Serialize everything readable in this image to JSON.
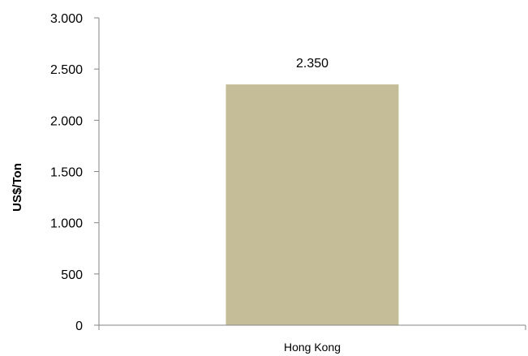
{
  "chart_data": {
    "type": "bar",
    "categories": [
      "Hong Kong"
    ],
    "values": [
      2350
    ],
    "data_labels": [
      "2.350"
    ],
    "title": "",
    "xlabel": "",
    "ylabel": "US$/Ton",
    "ylim": [
      0,
      3000
    ],
    "yticks": [
      0,
      500,
      1000,
      1500,
      2000,
      2500,
      3000
    ],
    "ytick_labels": [
      "0",
      "500",
      "1.000",
      "1.500",
      "2.000",
      "2.500",
      "3.000"
    ],
    "grid": false,
    "legend": "none",
    "colors": {
      "bar": "#c4bd97",
      "axis": "#868686"
    }
  }
}
